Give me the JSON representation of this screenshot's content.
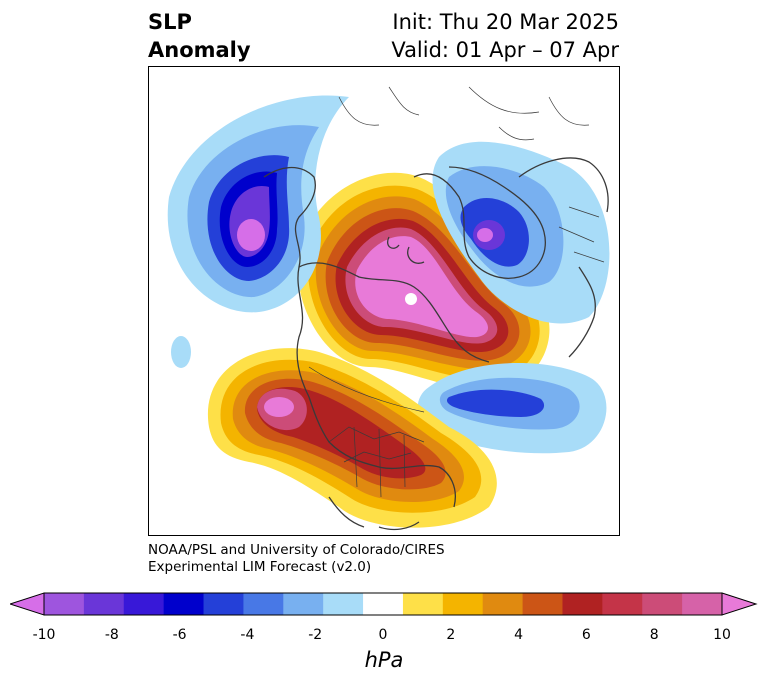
{
  "title": {
    "left_line1": "SLP",
    "left_line2": "Anomaly",
    "right_line1": "Init: Thu 20 Mar 2025",
    "right_line2": "Valid: 01 Apr – 07 Apr"
  },
  "credit": {
    "line1": "NOAA/PSL and University of Colorado/CIRES",
    "line2": "Experimental LIM Forecast (v2.0)"
  },
  "colorbar": {
    "units": "hPa",
    "ticks": [
      "-10",
      "-8",
      "-6",
      "-4",
      "-2",
      "0",
      "2",
      "4",
      "6",
      "8",
      "10"
    ],
    "extend": "both",
    "colors": [
      "#d66ee8",
      "#9e55de",
      "#6a36d8",
      "#3818d8",
      "#0000cc",
      "#2440d8",
      "#4878e6",
      "#78b0f0",
      "#a8dcf8",
      "#ffffff",
      "#fee048",
      "#f4b400",
      "#e08a10",
      "#cc5516",
      "#b02222",
      "#c43448",
      "#cc4c78",
      "#d662a8",
      "#e87ad8"
    ]
  },
  "map": {
    "projection": "north-polar-stereographic",
    "features": [
      "coastlines",
      "country-borders",
      "us-state-borders"
    ]
  }
}
